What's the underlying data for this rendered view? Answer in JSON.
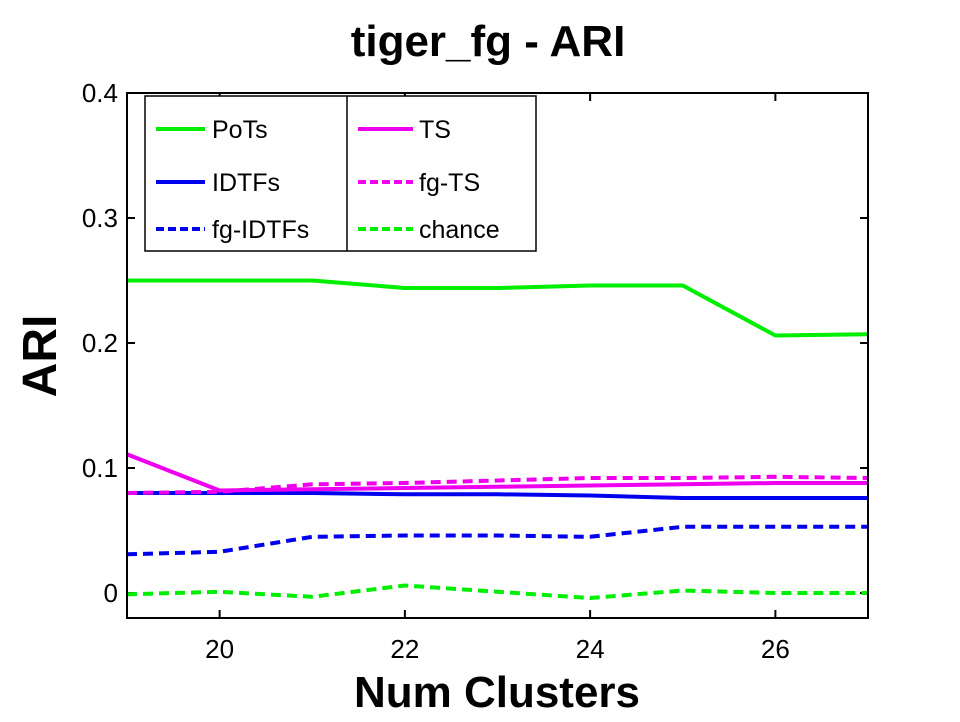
{
  "chart_data": {
    "type": "line",
    "title": "tiger_fg - ARI",
    "xlabel": "Num Clusters",
    "ylabel": "ARI",
    "xlim": [
      19,
      27
    ],
    "ylim": [
      -0.02,
      0.4
    ],
    "xticks": [
      20,
      22,
      24,
      26
    ],
    "xtick_labels": [
      "20",
      "22",
      "24",
      "26"
    ],
    "yticks": [
      0,
      0.1,
      0.2,
      0.3,
      0.4
    ],
    "ytick_labels": [
      "0",
      "0.1",
      "0.2",
      "0.3",
      "0.4"
    ],
    "grid": false,
    "legend_position": "top-left",
    "x": [
      19,
      20,
      21,
      22,
      23,
      24,
      25,
      26,
      27
    ],
    "series": [
      {
        "name": "PoTs",
        "color": "#00ee00",
        "dash": "solid",
        "values": [
          0.25,
          0.25,
          0.25,
          0.244,
          0.244,
          0.246,
          0.246,
          0.206,
          0.207
        ]
      },
      {
        "name": "IDTFs",
        "color": "#0000ee",
        "dash": "solid",
        "values": [
          0.08,
          0.08,
          0.08,
          0.079,
          0.079,
          0.078,
          0.076,
          0.076,
          0.076
        ]
      },
      {
        "name": "fg-IDTFs",
        "color": "#0000ee",
        "dash": "dashed",
        "values": [
          0.031,
          0.033,
          0.045,
          0.046,
          0.046,
          0.045,
          0.053,
          0.053,
          0.053
        ]
      },
      {
        "name": "TS",
        "color": "#ee00ee",
        "dash": "solid",
        "values": [
          0.111,
          0.082,
          0.083,
          0.084,
          0.085,
          0.086,
          0.087,
          0.088,
          0.088
        ]
      },
      {
        "name": "fg-TS",
        "color": "#ee00ee",
        "dash": "dashed",
        "values": [
          0.08,
          0.081,
          0.087,
          0.088,
          0.09,
          0.092,
          0.092,
          0.093,
          0.092
        ]
      },
      {
        "name": "chance",
        "color": "#00ee00",
        "dash": "dashed",
        "values": [
          -0.001,
          0.001,
          -0.003,
          0.006,
          0.001,
          -0.004,
          0.002,
          0.0,
          0.0
        ]
      }
    ]
  }
}
